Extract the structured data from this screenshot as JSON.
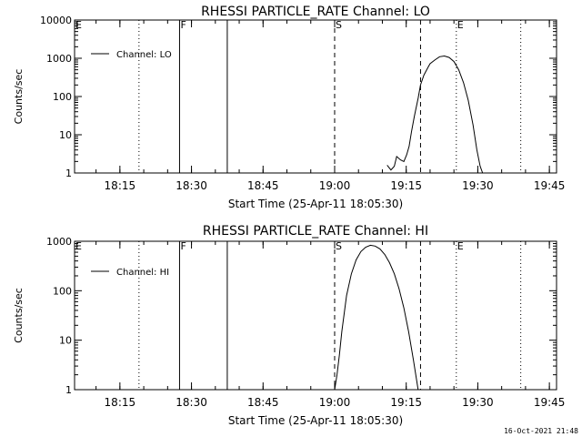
{
  "chart_data": [
    {
      "type": "line",
      "title": "RHESSI PARTICLE_RATE Channel: LO",
      "xlabel": "Start Time (25-Apr-11 18:05:30)",
      "ylabel": "Counts/sec",
      "y_scale": "log",
      "ylim": [
        1,
        10000
      ],
      "y_ticks": [
        "1",
        "10",
        "100",
        "1000",
        "10000"
      ],
      "x_ticks": [
        "18:15",
        "18:30",
        "18:45",
        "19:00",
        "19:15",
        "19:30",
        "19:45"
      ],
      "x_range_minutes": [
        0,
        101
      ],
      "grid": false,
      "legend": "top-left",
      "series": [
        {
          "name": "Channel: LO",
          "x": [
            65.5,
            66.3,
            67.0,
            67.5,
            68.3,
            69.0,
            69.6,
            70.1,
            70.6,
            71.2,
            72.0,
            72.5,
            73.2,
            74.0,
            74.5,
            75.5,
            76.5,
            77.5,
            78.5,
            79.5,
            80.5,
            81.5,
            82.5,
            83.5,
            84.3,
            85.0,
            85.5
          ],
          "y": [
            1.6,
            1.2,
            1.5,
            2.7,
            2.2,
            2.0,
            3.0,
            5.0,
            12,
            30,
            90,
            200,
            360,
            560,
            720,
            900,
            1100,
            1150,
            1050,
            820,
            500,
            230,
            80,
            18,
            4,
            1.5,
            1
          ]
        }
      ],
      "markers": [
        {
          "label": "F",
          "minute": 22,
          "style": "solid"
        },
        {
          "label": "",
          "minute": 32,
          "style": "solid"
        },
        {
          "label": "S",
          "minute": 54.5,
          "style": "dashed"
        },
        {
          "label": "",
          "minute": 72.5,
          "style": "dashed"
        },
        {
          "label": "E",
          "minute": 80,
          "style": "dotted"
        },
        {
          "label": "",
          "minute": 13.5,
          "style": "dotted"
        },
        {
          "label": "",
          "minute": 93.5,
          "style": "dotted"
        }
      ]
    },
    {
      "type": "line",
      "title": "RHESSI PARTICLE_RATE Channel: HI",
      "xlabel": "Start Time (25-Apr-11 18:05:30)",
      "ylabel": "Counts/sec",
      "y_scale": "log",
      "ylim": [
        1,
        1000
      ],
      "y_ticks": [
        "1",
        "10",
        "100",
        "1000"
      ],
      "x_ticks": [
        "18:15",
        "18:30",
        "18:45",
        "19:00",
        "19:15",
        "19:30",
        "19:45"
      ],
      "x_range_minutes": [
        0,
        101
      ],
      "grid": false,
      "legend": "top-left",
      "series": [
        {
          "name": "Channel: HI",
          "x": [
            54.5,
            55.0,
            55.5,
            56.0,
            57.0,
            58.0,
            59.0,
            60.0,
            61.0,
            62.0,
            63.0,
            64.0,
            65.0,
            66.0,
            67.0,
            68.0,
            69.0,
            70.0,
            71.0,
            72.0
          ],
          "y": [
            1,
            2,
            5,
            15,
            80,
            220,
            420,
            620,
            760,
            830,
            800,
            700,
            540,
            370,
            220,
            110,
            45,
            15,
            4,
            1
          ]
        }
      ],
      "markers": [
        {
          "label": "F",
          "minute": 22,
          "style": "solid"
        },
        {
          "label": "",
          "minute": 32,
          "style": "solid"
        },
        {
          "label": "S",
          "minute": 54.5,
          "style": "dashed"
        },
        {
          "label": "",
          "minute": 72.5,
          "style": "dashed"
        },
        {
          "label": "E",
          "minute": 80,
          "style": "dotted"
        },
        {
          "label": "",
          "minute": 13.5,
          "style": "dotted"
        },
        {
          "label": "",
          "minute": 93.5,
          "style": "dotted"
        }
      ]
    }
  ],
  "footer": {
    "timestamp": "16-Oct-2021 21:48"
  }
}
